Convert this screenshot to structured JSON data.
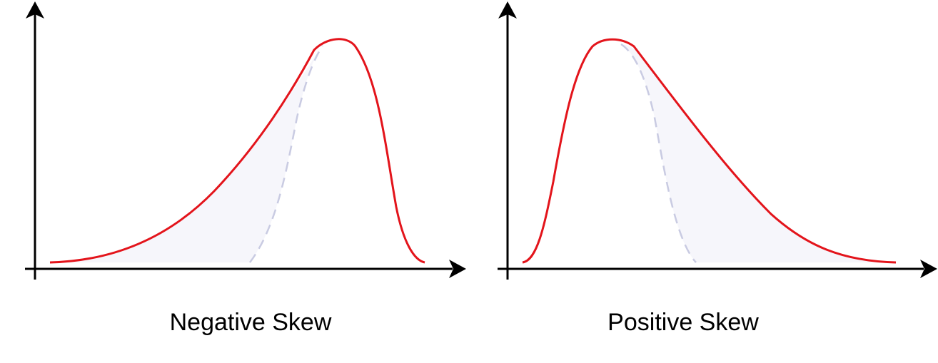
{
  "panels": [
    {
      "label": "Negative Skew",
      "skew": "negative"
    },
    {
      "label": "Positive Skew",
      "skew": "positive"
    }
  ],
  "colors": {
    "curve": "#e3141b",
    "reference_curve": "#c9cbe2",
    "shaded_area": "#f6f6fb",
    "axis": "#000000",
    "background": "#ffffff"
  }
}
